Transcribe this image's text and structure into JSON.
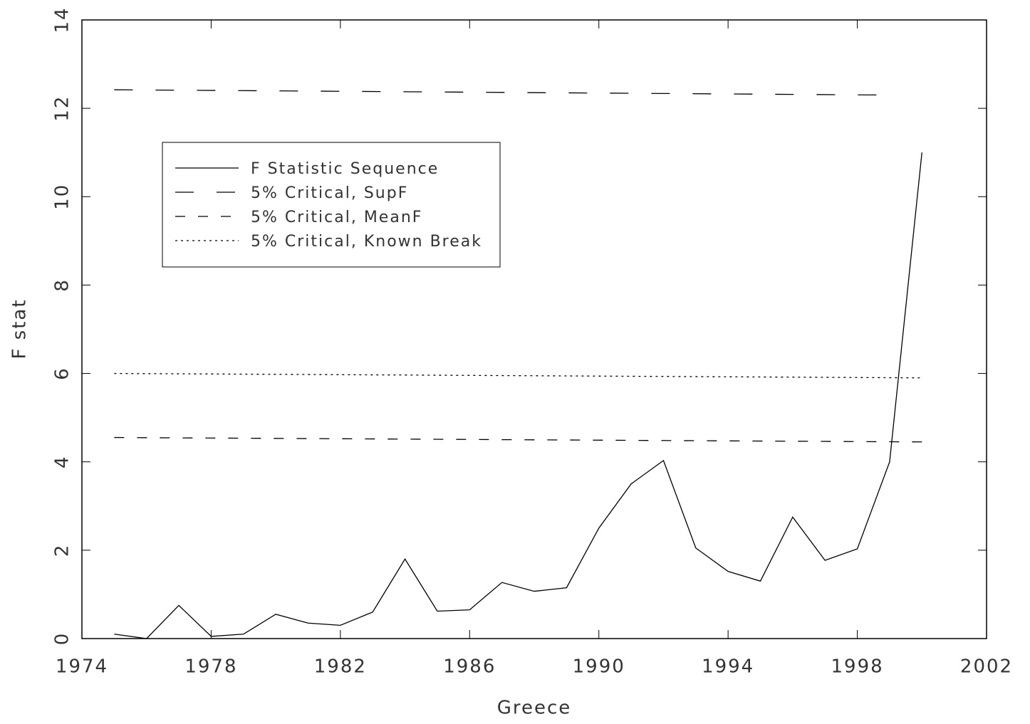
{
  "chart_data": {
    "type": "line",
    "xlabel": "Greece",
    "ylabel": "F stat",
    "xlim": [
      1974,
      2002
    ],
    "xticks": [
      1974,
      1978,
      1982,
      1986,
      1990,
      1994,
      1998,
      2002
    ],
    "ylim": [
      0,
      14
    ],
    "yticks": [
      0,
      2,
      4,
      6,
      8,
      10,
      12,
      14
    ],
    "legend": "upper left",
    "series": [
      {
        "name": "F Statistic Sequence",
        "color": "#000000",
        "x": [
          1975,
          1976,
          1977,
          1978,
          1979,
          1980,
          1981,
          1982,
          1983,
          1984,
          1985,
          1986,
          1987,
          1988,
          1989,
          1990,
          1991,
          1992,
          1993,
          1994,
          1995,
          1996,
          1997,
          1998,
          1999,
          2000
        ],
        "values": [
          0.1,
          0.0,
          0.75,
          0.05,
          0.1,
          0.55,
          0.35,
          0.3,
          0.6,
          1.8,
          0.62,
          0.65,
          1.27,
          1.07,
          1.15,
          2.5,
          3.5,
          4.03,
          2.05,
          1.52,
          1.3,
          2.75,
          1.77,
          2.03,
          4.0,
          11.0
        ]
      },
      {
        "name": "5% Critical, SupF",
        "color": "#000000",
        "x": [
          1975,
          1999
        ],
        "values": [
          12.42,
          12.3
        ]
      },
      {
        "name": "5% Critical, MeanF",
        "color": "#000000",
        "x": [
          1975,
          2000
        ],
        "values": [
          4.55,
          4.45
        ]
      },
      {
        "name": "5% Critical, Known Break",
        "color": "#000000",
        "x": [
          1975,
          2000
        ],
        "values": [
          6.0,
          5.9
        ]
      }
    ]
  }
}
